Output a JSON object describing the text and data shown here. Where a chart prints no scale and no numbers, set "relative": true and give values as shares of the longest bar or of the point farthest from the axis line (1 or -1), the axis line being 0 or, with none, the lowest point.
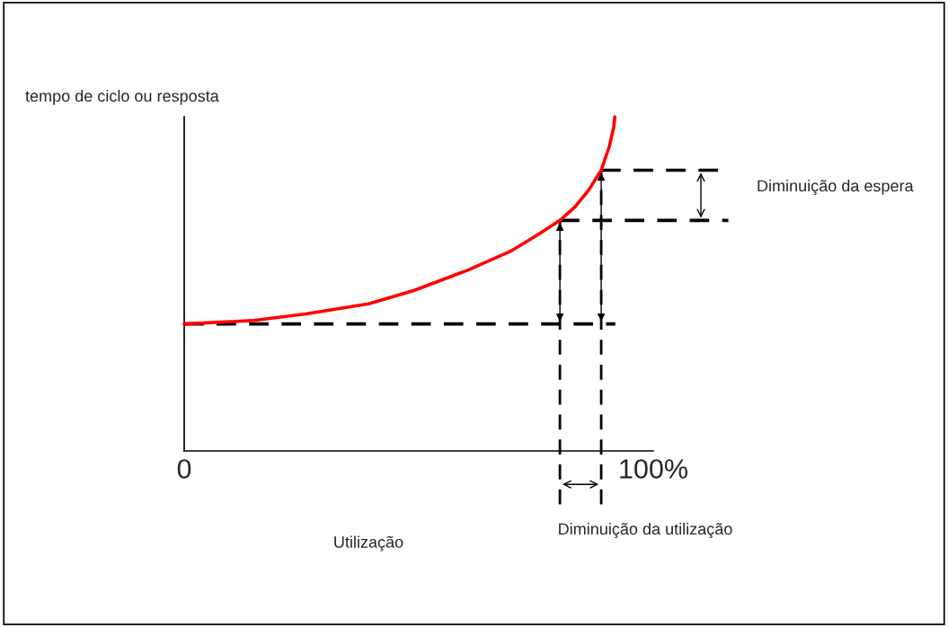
{
  "chart_data": {
    "type": "line",
    "relative": true,
    "ylabel": "tempo de ciclo ou resposta",
    "xlabel": "Utilização",
    "xlim": [
      0,
      100
    ],
    "xticks": [
      0,
      {
        "value": 100,
        "label": "100%"
      }
    ],
    "tick_labels": "x",
    "grid": false,
    "marker": "none",
    "series": [
      {
        "color": "#ff0000",
        "x": [
          0,
          14.4,
          25.9,
          39.3,
          48.9,
          60.3,
          69.9,
          75.7,
          80.1,
          83.3,
          86.2,
          88.9,
          90.6,
          91.6,
          91.8
        ],
        "values": [
          0.38,
          0.39,
          0.41,
          0.44,
          0.48,
          0.54,
          0.6,
          0.65,
          0.69,
          0.73,
          0.78,
          0.84,
          0.91,
          0.97,
          1.0
        ]
      }
    ],
    "ref_lines": [
      {
        "axis": "y",
        "value": 0.38,
        "line_style": "dashed",
        "color": "#000000"
      },
      {
        "axis": "y",
        "value": 0.69,
        "line_style": "dashed",
        "color": "#000000"
      },
      {
        "axis": "y",
        "value": 0.84,
        "line_style": "dashed",
        "color": "#000000"
      },
      {
        "axis": "x",
        "value": 80.1,
        "line_style": "dashed",
        "color": "#000000"
      },
      {
        "axis": "x",
        "value": 88.9,
        "line_style": "dashed",
        "color": "#000000"
      }
    ],
    "annotations": [
      "Diminuição da espera",
      "Diminuição da utilização"
    ]
  }
}
